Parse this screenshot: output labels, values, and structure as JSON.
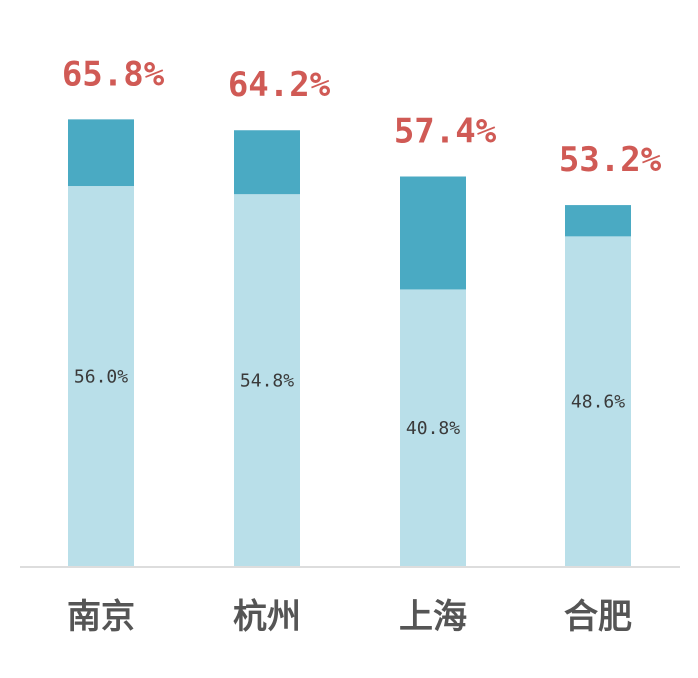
{
  "chart_data": {
    "type": "bar",
    "stacked": true,
    "categories": [
      "南京",
      "杭州",
      "上海",
      "合肥"
    ],
    "series": [
      {
        "values": [
          56.0,
          54.8,
          40.8,
          48.6
        ],
        "color": "#b9dfe9"
      },
      {
        "values": [
          9.8,
          9.4,
          16.6,
          4.6
        ],
        "color": "#4aaac3"
      }
    ],
    "totals": [
      65.8,
      64.2,
      57.4,
      53.2
    ],
    "total_labels": [
      "65.8%",
      "64.2%",
      "57.4%",
      "53.2%"
    ],
    "inner_labels": [
      "56.0%",
      "54.8%",
      "40.8%",
      "48.6%"
    ],
    "ylim": [
      0,
      66.0
    ],
    "grid": false,
    "baseline_color": "#dddddd",
    "label_color": "#d05a55",
    "category_color": "#555555"
  }
}
